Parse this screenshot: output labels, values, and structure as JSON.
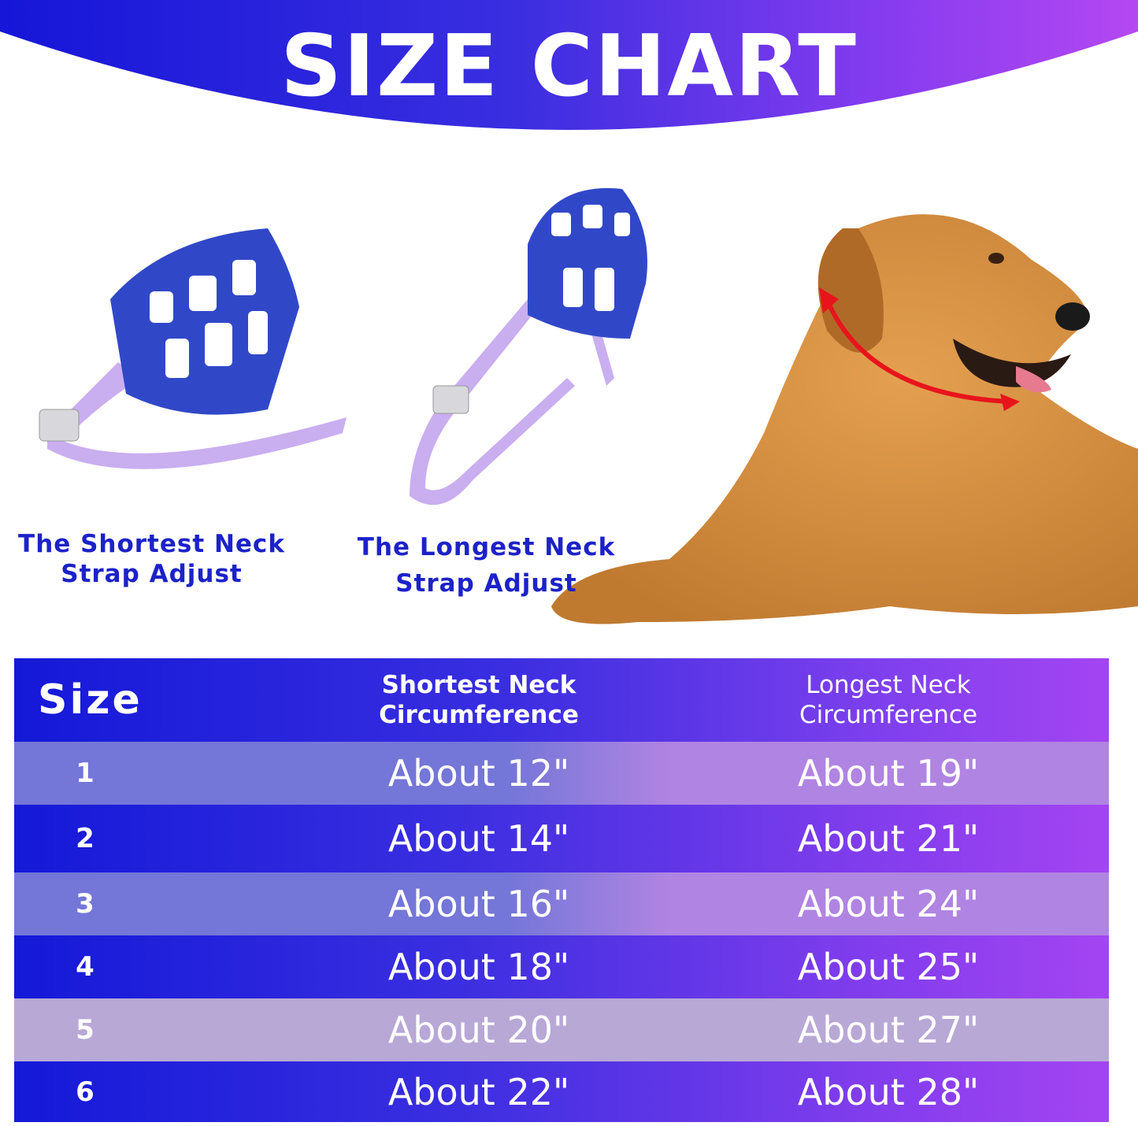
{
  "header": {
    "title": "SIZE CHART"
  },
  "captions": {
    "shortest": [
      "The Shortest Neck",
      "Strap Adjust"
    ],
    "longest": [
      "The Longest Neck",
      "Strap Adjust"
    ]
  },
  "table": {
    "headers": {
      "size": "Size",
      "shortest": [
        "Shortest Neck",
        "Circumference"
      ],
      "longest": [
        "Longest Neck",
        "Circumference"
      ]
    },
    "rows": [
      {
        "size": "1",
        "shortest": "About 12\"",
        "longest": "About 19\""
      },
      {
        "size": "2",
        "shortest": "About 14\"",
        "longest": "About 21\""
      },
      {
        "size": "3",
        "shortest": "About 16\"",
        "longest": "About 24\""
      },
      {
        "size": "4",
        "shortest": "About 18\"",
        "longest": "About 25\""
      },
      {
        "size": "5",
        "shortest": "About 20\"",
        "longest": "About 27\""
      },
      {
        "size": "6",
        "shortest": "About 22\"",
        "longest": "About 28\""
      }
    ]
  },
  "colors": {
    "brand_blue": "#1616d8",
    "brand_purple": "#b448f2",
    "caption": "#1c22c8",
    "arrow": "#e8141c"
  }
}
